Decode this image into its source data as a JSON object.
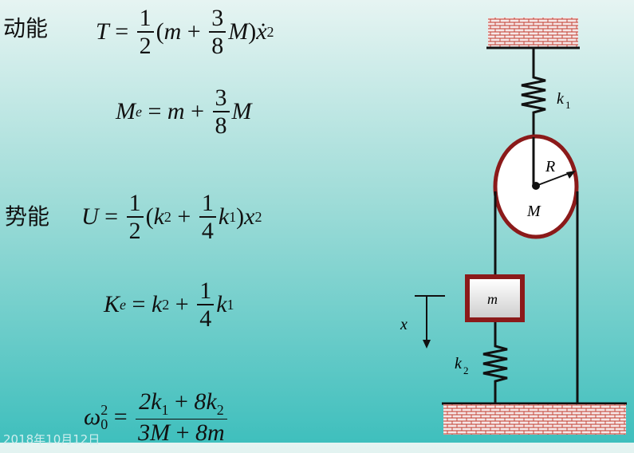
{
  "labels": {
    "kinetic": "动能",
    "potential": "势能"
  },
  "date": "2018年10月12日",
  "diagram": {
    "k1": "k",
    "k1_sub": "1",
    "k2": "k",
    "k2_sub": "2",
    "R": "R",
    "M": "M",
    "m": "m",
    "x": "x"
  },
  "colors": {
    "pulley_rim": "#8b1a1a",
    "block_border": "#8b1a1a",
    "ground_hatch": "#c0392b"
  }
}
